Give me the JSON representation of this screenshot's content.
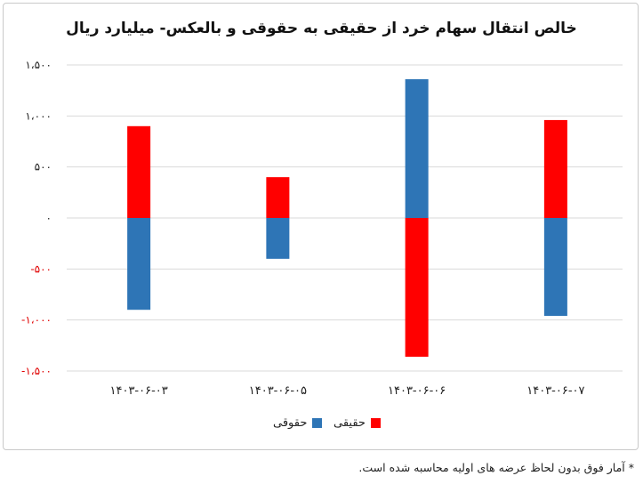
{
  "chart_data": {
    "type": "bar",
    "title": "خالص انتقال سهام خرد از حقیقی به حقوقی و بالعکس- میلیارد ریال",
    "categories": [
      "۱۴۰۳-۰۶-۰۳",
      "۱۴۰۳-۰۶-۰۵",
      "۱۴۰۳-۰۶-۰۶",
      "۱۴۰۳-۰۶-۰۷"
    ],
    "series": [
      {
        "name": "حقیقی",
        "color": "#ff0000",
        "values": [
          900,
          400,
          -1360,
          960
        ]
      },
      {
        "name": "حقوقی",
        "color": "#2e75b6",
        "values": [
          -900,
          -400,
          1360,
          -960
        ]
      }
    ],
    "yticks": [
      {
        "value": 1500,
        "label": "۱،۵۰۰"
      },
      {
        "value": 1000,
        "label": "۱،۰۰۰"
      },
      {
        "value": 500,
        "label": "۵۰۰"
      },
      {
        "value": 0,
        "label": "۰"
      },
      {
        "value": -500,
        "label": "-۵۰۰"
      },
      {
        "value": -1000,
        "label": "-۱،۰۰۰"
      },
      {
        "value": -1500,
        "label": "-۱،۵۰۰"
      }
    ],
    "ylim": [
      -1500,
      1500
    ],
    "grid": true,
    "legend": "bottom-center"
  },
  "footnote": "* آمار فوق بدون لحاظ عرضه های اولیه محاسبه شده است."
}
